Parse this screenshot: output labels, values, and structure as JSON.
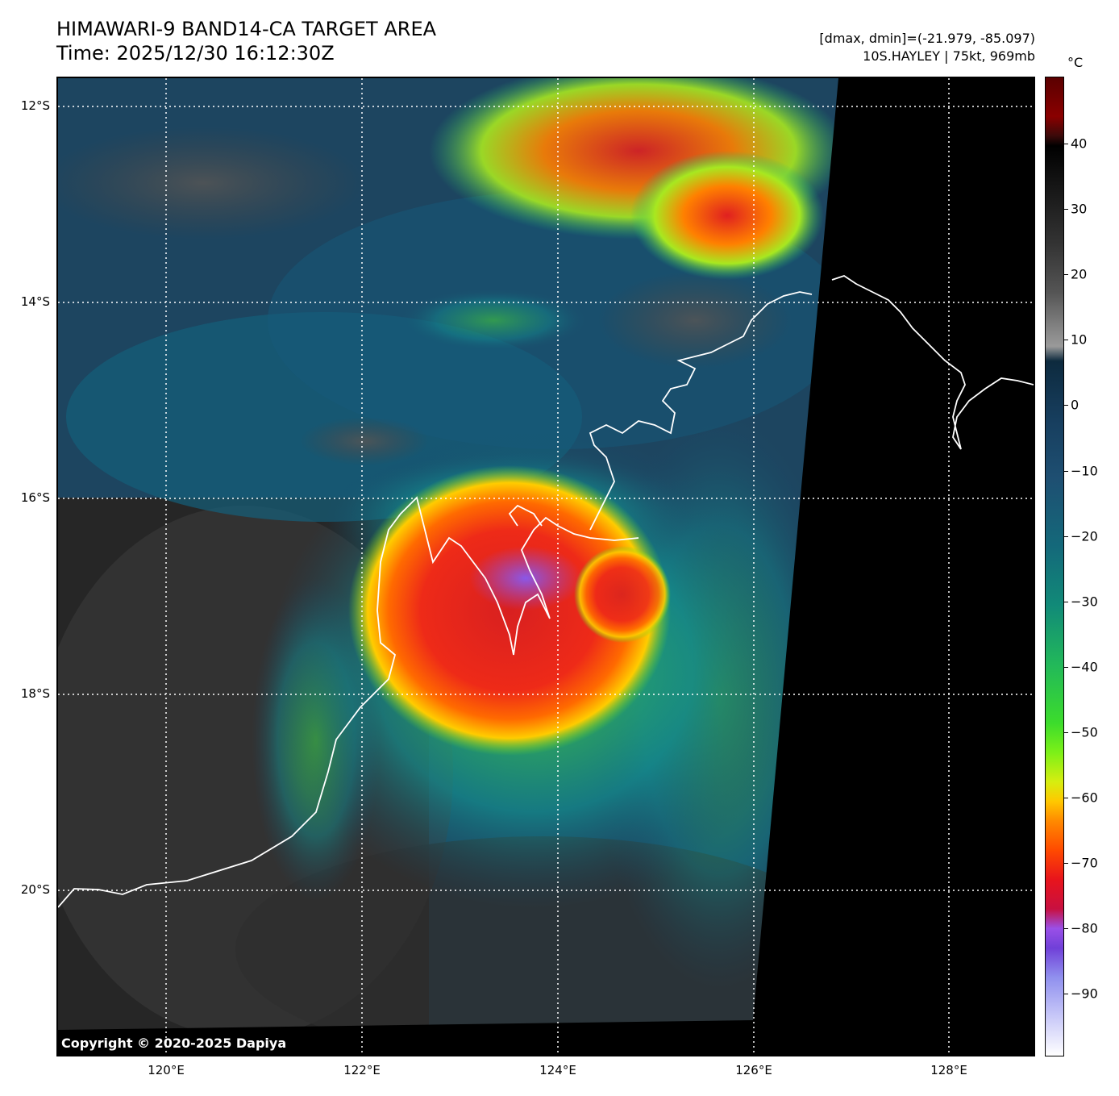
{
  "header": {
    "title_line1": "HIMAWARI-9 BAND14-CA TARGET AREA",
    "title_line2": "Time: 2025/12/30 16:12:30Z",
    "info_line1": "[dmax, dmin]=(-21.979, -85.097)",
    "info_line2": "10S.HAYLEY | 75kt, 969mb"
  },
  "map": {
    "lat_labels": [
      "12°S",
      "14°S",
      "16°S",
      "18°S",
      "20°S"
    ],
    "lon_labels": [
      "120°E",
      "122°E",
      "124°E",
      "126°E",
      "128°E"
    ],
    "copyright": "Copyright © 2020-2025 Dapiya",
    "colors": {
      "storm_core": "#e8281c",
      "eye_region": "#9a60e0",
      "land_coast": "#ffffff",
      "no_data": "#000000"
    }
  },
  "colorbar": {
    "unit": "°C",
    "ticks": [
      "40",
      "30",
      "20",
      "10",
      "0",
      "−10",
      "−20",
      "−30",
      "−40",
      "−50",
      "−60",
      "−70",
      "−80",
      "−90"
    ]
  }
}
